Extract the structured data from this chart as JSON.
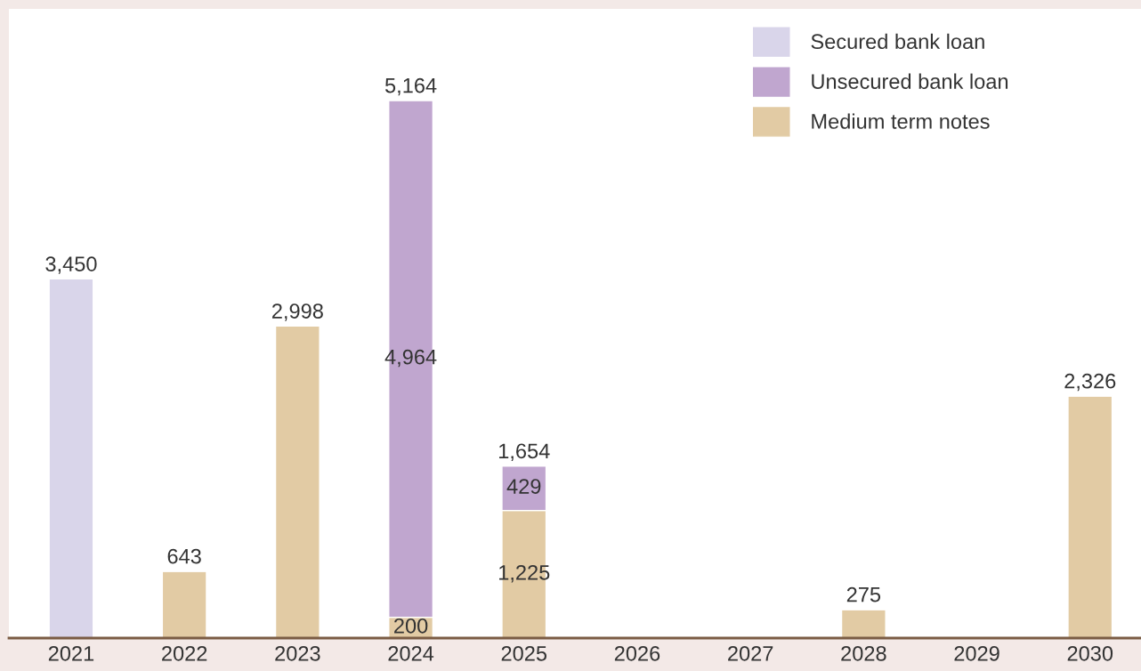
{
  "chart_data": {
    "type": "bar",
    "stacked": true,
    "categories": [
      "2021",
      "2022",
      "2023",
      "2024",
      "2025",
      "2026",
      "2027",
      "2028",
      "2029",
      "2030"
    ],
    "series": [
      {
        "name": "Medium term notes",
        "color": "#e2cba4",
        "values": [
          null,
          643,
          2998,
          200,
          1225,
          null,
          null,
          275,
          null,
          2326
        ],
        "value_labels": [
          null,
          null,
          null,
          "200",
          "1,225",
          null,
          null,
          null,
          null,
          null
        ]
      },
      {
        "name": "Unsecured bank loan",
        "color": "#c0a6cf",
        "values": [
          null,
          null,
          null,
          4964,
          429,
          null,
          null,
          null,
          null,
          null
        ],
        "value_labels": [
          null,
          null,
          null,
          "4,964",
          "429",
          null,
          null,
          null,
          null,
          null
        ]
      },
      {
        "name": "Secured bank loan",
        "color": "#d9d5ea",
        "values": [
          3450,
          null,
          null,
          null,
          null,
          null,
          null,
          null,
          null,
          null
        ],
        "value_labels": [
          null,
          null,
          null,
          null,
          null,
          null,
          null,
          null,
          null,
          null
        ]
      }
    ],
    "totals": [
      "3,450",
      "643",
      "2,998",
      "5,164",
      "1,654",
      null,
      null,
      "275",
      null,
      "2,326"
    ],
    "legend": "top right",
    "grid": false
  }
}
